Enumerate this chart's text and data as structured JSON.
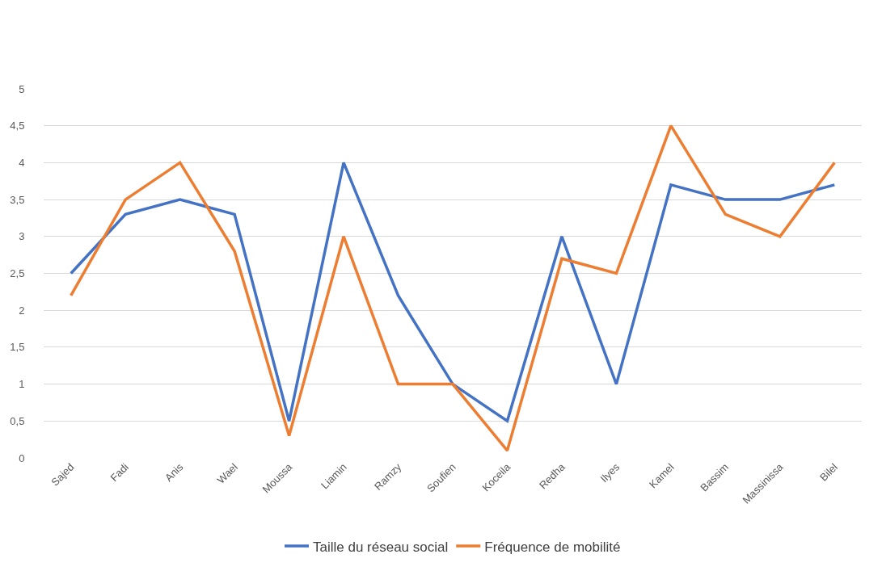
{
  "chart_data": {
    "type": "line",
    "categories": [
      "Sajed",
      "Fadi",
      "Anis",
      "Wael",
      "Moussa",
      "Liamin",
      "Ramzy",
      "Soufien",
      "Koceila",
      "Redha",
      "Ilyes",
      "Kamel",
      "Bassim",
      "Massinissa",
      "Bilel"
    ],
    "series": [
      {
        "name": "Taille du réseau social",
        "color": "#4472c4",
        "values": [
          2.5,
          3.3,
          3.5,
          3.3,
          0.5,
          4,
          2.2,
          1,
          0.5,
          3,
          1,
          3.7,
          3.5,
          3.5,
          3.7
        ]
      },
      {
        "name": "Fréquence de mobilité",
        "color": "#ed7d31",
        "values": [
          2.2,
          3.5,
          4,
          2.8,
          0.3,
          3,
          1,
          1,
          0.1,
          2.7,
          2.5,
          4.5,
          3.3,
          3,
          4
        ]
      }
    ],
    "ylim": [
      0,
      5
    ],
    "yticks": [
      0,
      {
        "value": 0.5,
        "label": "0,5"
      },
      1,
      {
        "value": 1.5,
        "label": "1,5"
      },
      2,
      {
        "value": 2.5,
        "label": "2,5"
      },
      3,
      {
        "value": 3.5,
        "label": "3,5"
      },
      4,
      {
        "value": 4.5,
        "label": "4,5"
      },
      5
    ],
    "grid": "y",
    "legend": "bottom",
    "marker": "none",
    "line_style": "solid"
  }
}
